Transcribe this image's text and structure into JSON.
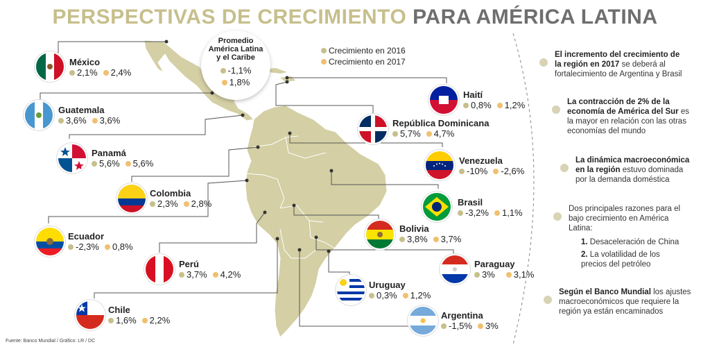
{
  "title": {
    "part1": "PERSPECTIVAS DE CRECIMIENTO",
    "part2": "PARA AMÉRICA LATINA"
  },
  "legend": {
    "y2016": "Crecimiento en 2016",
    "y2017": "Crecimiento en 2017"
  },
  "colors": {
    "growth_2016": "#c7bf8c",
    "growth_2017": "#f0c070",
    "map_land": "#d4cfa4",
    "title_accent": "#c7bf8c",
    "title_gray": "#6e6e6e"
  },
  "regional_average": {
    "label_line1": "Promedio",
    "label_line2": "América Latina",
    "label_line3": "y el Caribe",
    "g2016": "-1,1%",
    "g2017": "1,8%"
  },
  "countries": {
    "mexico": {
      "name": "México",
      "g2016": "2,1%",
      "g2017": "2,4%"
    },
    "guatemala": {
      "name": "Guatemala",
      "g2016": "3,6%",
      "g2017": "3,6%"
    },
    "panama": {
      "name": "Panamá",
      "g2016": "5,6%",
      "g2017": "5,6%"
    },
    "colombia": {
      "name": "Colombia",
      "g2016": "2,3%",
      "g2017": "2,8%"
    },
    "ecuador": {
      "name": "Ecuador",
      "g2016": "-2,3%",
      "g2017": "0,8%"
    },
    "peru": {
      "name": "Perú",
      "g2016": "3,7%",
      "g2017": "4,2%"
    },
    "chile": {
      "name": "Chile",
      "g2016": "1,6%",
      "g2017": "2,2%"
    },
    "haiti": {
      "name": "Haití",
      "g2016": "0,8%",
      "g2017": "1,2%"
    },
    "dominicana": {
      "name": "República Dominicana",
      "g2016": "5,7%",
      "g2017": "4,7%"
    },
    "venezuela": {
      "name": "Venezuela",
      "g2016": "-10%",
      "g2017": "-2,6%"
    },
    "brasil": {
      "name": "Brasil",
      "g2016": "-3,2%",
      "g2017": "1,1%"
    },
    "bolivia": {
      "name": "Bolivia",
      "g2016": "3,8%",
      "g2017": "3,7%"
    },
    "paraguay": {
      "name": "Paraguay",
      "g2016": "3%",
      "g2017": "3,1%"
    },
    "uruguay": {
      "name": "Uruguay",
      "g2016": "0,3%",
      "g2017": "1,2%"
    },
    "argentina": {
      "name": "Argentina",
      "g2016": "-1,5%",
      "g2017": "3%"
    }
  },
  "notes": {
    "n1_bold": "El incremento del crecimiento de la región en 2017",
    "n1_rest": " se deberá al fortalecimiento de Argentina y Brasil",
    "n2_bold": "La contracción de 2% de la economía de América del Sur",
    "n2_rest": " es la mayor en relación con las otras economías del mundo",
    "n3_bold": "La dinámica macroeconómica en la región",
    "n3_rest": " estuvo dominada por la demanda doméstica",
    "n4_line": "Dos principales razones para el bajo crecimiento en América Latina:",
    "n4_item1_num": "1.",
    "n4_item1": "Desaceleración de China",
    "n4_item2_num": "2.",
    "n4_item2": "La volatilidad de los precios del petróleo",
    "n5_bold": "Según el Banco Mundial",
    "n5_rest": " los ajustes macroeconómicos que requiere la región ya están encaminados"
  },
  "footer": "Fuente: Banco Mundial / Gráfico: LR / DC"
}
